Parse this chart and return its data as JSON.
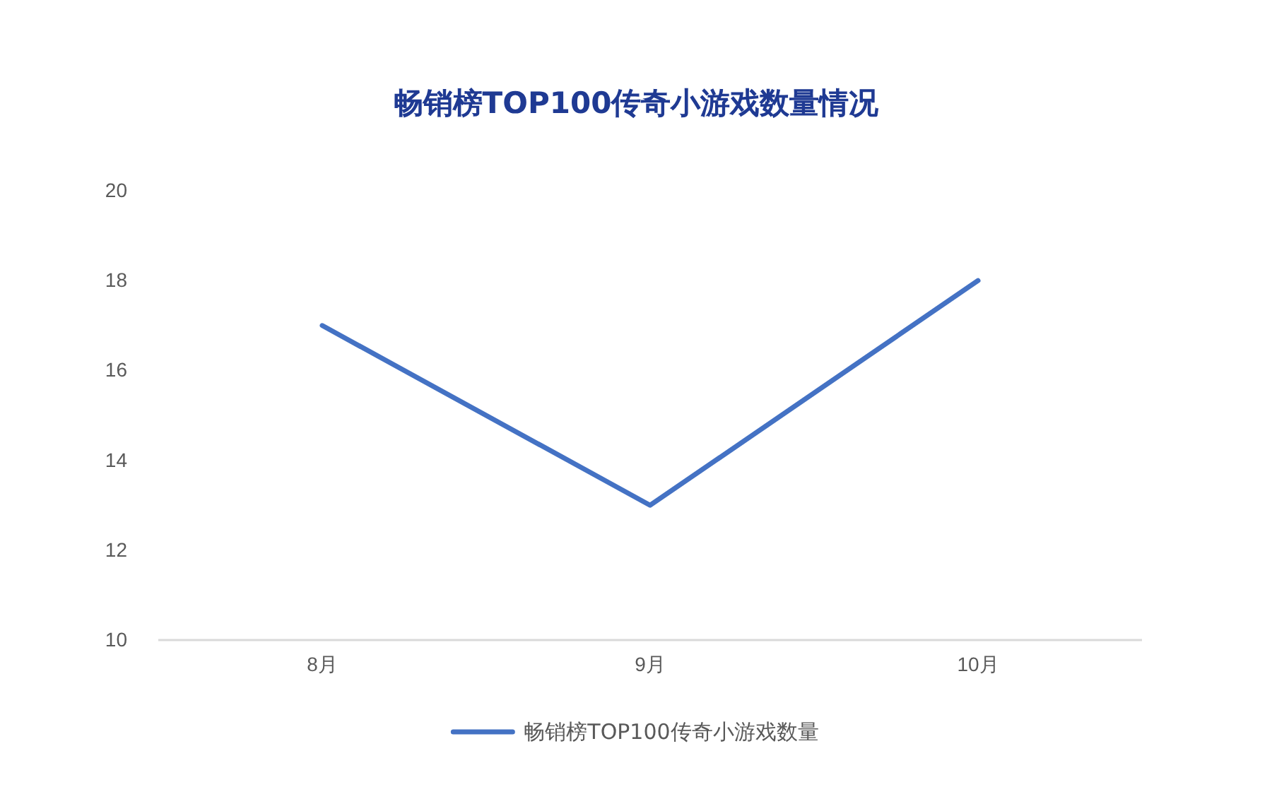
{
  "chart_data": {
    "type": "line",
    "title": "畅销榜TOP100传奇小游戏数量情况",
    "categories": [
      "8月",
      "9月",
      "10月"
    ],
    "series": [
      {
        "name": "畅销榜TOP100传奇小游戏数量",
        "color": "#4472c4",
        "values": [
          17,
          13,
          18
        ]
      }
    ],
    "ylim": [
      10,
      20
    ],
    "yticks": [
      10,
      12,
      14,
      16,
      18,
      20
    ],
    "grid": false,
    "legend": "bottom",
    "marker": "none",
    "line_style": "solid"
  }
}
